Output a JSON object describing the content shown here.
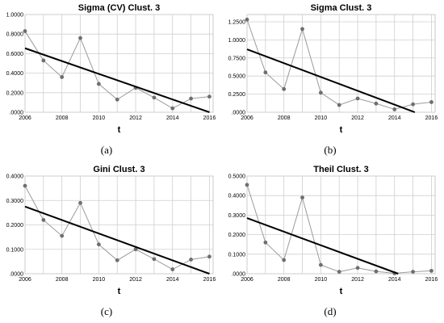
{
  "chart_data": [
    {
      "type": "line",
      "title": "Sigma (CV) Clust. 3",
      "xlabel": "t",
      "ylabel": "",
      "caption": "(a)",
      "x": [
        2006,
        2007,
        2008,
        2009,
        2010,
        2011,
        2012,
        2013,
        2014,
        2015,
        2016
      ],
      "series": [
        {
          "values": [
            0.83,
            0.53,
            0.36,
            0.76,
            0.29,
            0.13,
            0.25,
            0.15,
            0.04,
            0.14,
            0.16
          ]
        }
      ],
      "trend": {
        "x": [
          2006,
          2016
        ],
        "y": [
          0.655,
          0.0
        ]
      },
      "xticks": [
        2006,
        2008,
        2010,
        2012,
        2014,
        2016
      ],
      "xtick_labels": [
        "2006",
        "2008",
        "2010",
        "2012",
        "2014",
        "2016"
      ],
      "yticks": [
        0,
        0.2,
        0.4,
        0.6,
        0.8,
        1.0
      ],
      "ytick_labels": [
        ".0000",
        "0.2000",
        "0.4000",
        "0.6000",
        "0.8000",
        "1.0000"
      ],
      "xlim": [
        2006,
        2016.2
      ],
      "ylim": [
        0,
        1.0
      ],
      "grid": true,
      "colors": {
        "series": "#9b9b9b",
        "marker": "#6e6e6e",
        "trend": "#000000",
        "grid": "#cfcfcf"
      }
    },
    {
      "type": "line",
      "title": "Sigma Clust. 3",
      "xlabel": "t",
      "ylabel": "",
      "caption": "(b)",
      "x": [
        2006,
        2007,
        2008,
        2009,
        2010,
        2011,
        2012,
        2013,
        2014,
        2015,
        2016
      ],
      "series": [
        {
          "values": [
            1.28,
            0.55,
            0.32,
            1.15,
            0.27,
            0.1,
            0.19,
            0.12,
            0.04,
            0.11,
            0.14
          ]
        }
      ],
      "trend": {
        "x": [
          2006,
          2015.1
        ],
        "y": [
          0.87,
          0.0
        ]
      },
      "xticks": [
        2006,
        2008,
        2010,
        2012,
        2014,
        2016
      ],
      "xtick_labels": [
        "2006",
        "2008",
        "2010",
        "2012",
        "2014",
        "2016"
      ],
      "yticks": [
        0,
        0.25,
        0.5,
        0.75,
        1.0,
        1.25
      ],
      "ytick_labels": [
        ".0000",
        "0.2500",
        "0.5000",
        "0.7500",
        "1.0000",
        "1.2500"
      ],
      "xlim": [
        2006,
        2016.2
      ],
      "ylim": [
        0,
        1.35
      ],
      "grid": true,
      "colors": {
        "series": "#9b9b9b",
        "marker": "#6e6e6e",
        "trend": "#000000",
        "grid": "#cfcfcf"
      }
    },
    {
      "type": "line",
      "title": "Gini Clust. 3",
      "xlabel": "t",
      "ylabel": "",
      "caption": "(c)",
      "x": [
        2006,
        2007,
        2008,
        2009,
        2010,
        2011,
        2012,
        2013,
        2014,
        2015,
        2016
      ],
      "series": [
        {
          "values": [
            0.36,
            0.22,
            0.155,
            0.29,
            0.12,
            0.055,
            0.1,
            0.06,
            0.018,
            0.058,
            0.07
          ]
        }
      ],
      "trend": {
        "x": [
          2006,
          2016
        ],
        "y": [
          0.275,
          0.0
        ]
      },
      "xticks": [
        2006,
        2008,
        2010,
        2012,
        2014,
        2016
      ],
      "xtick_labels": [
        "2006",
        "2008",
        "2010",
        "2012",
        "2014",
        "2016"
      ],
      "yticks": [
        0,
        0.1,
        0.2,
        0.3,
        0.4
      ],
      "ytick_labels": [
        ".0000",
        "0.1000",
        "0.2000",
        "0.3000",
        "0.4000"
      ],
      "xlim": [
        2006,
        2016.2
      ],
      "ylim": [
        0,
        0.4
      ],
      "grid": true,
      "colors": {
        "series": "#9b9b9b",
        "marker": "#6e6e6e",
        "trend": "#000000",
        "grid": "#cfcfcf"
      }
    },
    {
      "type": "line",
      "title": "Theil Clust. 3",
      "xlabel": "t",
      "ylabel": "",
      "caption": "(d)",
      "x": [
        2006,
        2007,
        2008,
        2009,
        2010,
        2011,
        2012,
        2013,
        2014,
        2015,
        2016
      ],
      "series": [
        {
          "values": [
            0.455,
            0.16,
            0.07,
            0.39,
            0.045,
            0.01,
            0.03,
            0.012,
            0.002,
            0.01,
            0.015
          ]
        }
      ],
      "trend": {
        "x": [
          2006,
          2014.2
        ],
        "y": [
          0.285,
          0.0
        ]
      },
      "xticks": [
        2006,
        2008,
        2010,
        2012,
        2014,
        2016
      ],
      "xtick_labels": [
        "2006",
        "2008",
        "2010",
        "2012",
        "2014",
        "2016"
      ],
      "yticks": [
        0,
        0.1,
        0.2,
        0.3,
        0.4,
        0.5
      ],
      "ytick_labels": [
        ".0000",
        "0.1000",
        "0.2000",
        "0.3000",
        "0.4000",
        "0.5000"
      ],
      "xlim": [
        2006,
        2016.2
      ],
      "ylim": [
        0,
        0.5
      ],
      "grid": true,
      "colors": {
        "series": "#9b9b9b",
        "marker": "#6e6e6e",
        "trend": "#000000",
        "grid": "#cfcfcf"
      }
    }
  ]
}
